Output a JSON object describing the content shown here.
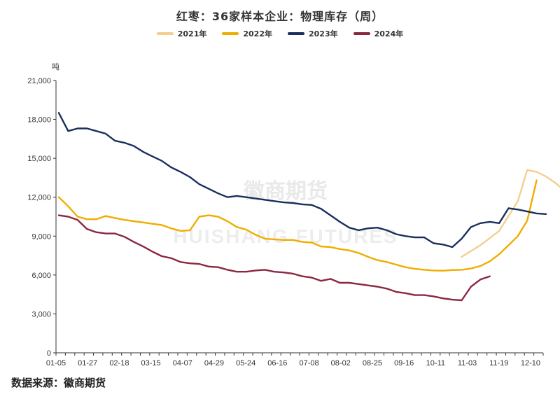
{
  "chart_data": {
    "type": "line",
    "title": "红枣：36家样本企业：物理库存（周）",
    "ylabel": "吨",
    "ylim": [
      0,
      21000
    ],
    "yticks": [
      "0",
      "3,000",
      "6,000",
      "9,000",
      "12,000",
      "15,000",
      "18,000",
      "21,000"
    ],
    "xticks": [
      "01-05",
      "01-27",
      "02-18",
      "03-15",
      "04-07",
      "04-29",
      "05-24",
      "06-16",
      "07-08",
      "08-02",
      "08-25",
      "09-16",
      "10-11",
      "11-03",
      "11-19",
      "12-10"
    ],
    "x_count": 52,
    "grid": false,
    "legend": "top",
    "watermark": [
      "徽商期货",
      "HUISHANG FUTURES"
    ],
    "series": [
      {
        "name": "2021年",
        "color": "#f3cf8f",
        "points": [
          [
            43,
            7400
          ],
          [
            45,
            8300
          ],
          [
            47,
            9400
          ],
          [
            49,
            11700
          ],
          [
            50,
            14100
          ],
          [
            51,
            13950
          ],
          [
            52,
            13600
          ],
          [
            53,
            13100
          ],
          [
            54,
            12500
          ]
        ]
      },
      {
        "name": "2022年",
        "color": "#f0ad00",
        "points": [
          [
            0,
            12000
          ],
          [
            1,
            11300
          ],
          [
            2,
            10500
          ],
          [
            3,
            10300
          ],
          [
            4,
            10300
          ],
          [
            5,
            10550
          ],
          [
            6,
            10400
          ],
          [
            7,
            10250
          ],
          [
            8,
            10150
          ],
          [
            9,
            10050
          ],
          [
            10,
            9950
          ],
          [
            11,
            9850
          ],
          [
            12,
            9600
          ],
          [
            13,
            9400
          ],
          [
            14,
            9450
          ],
          [
            15,
            10500
          ],
          [
            16,
            10600
          ],
          [
            17,
            10500
          ],
          [
            18,
            10150
          ],
          [
            19,
            9700
          ],
          [
            20,
            9500
          ],
          [
            21,
            9100
          ],
          [
            22,
            8800
          ],
          [
            23,
            8750
          ],
          [
            24,
            8700
          ],
          [
            25,
            8700
          ],
          [
            26,
            8550
          ],
          [
            27,
            8500
          ],
          [
            28,
            8200
          ],
          [
            29,
            8150
          ],
          [
            30,
            8000
          ],
          [
            31,
            7900
          ],
          [
            32,
            7700
          ],
          [
            33,
            7400
          ],
          [
            34,
            7150
          ],
          [
            35,
            7000
          ],
          [
            36,
            6800
          ],
          [
            37,
            6600
          ],
          [
            38,
            6480
          ],
          [
            39,
            6400
          ],
          [
            40,
            6350
          ],
          [
            41,
            6330
          ],
          [
            42,
            6380
          ],
          [
            43,
            6400
          ],
          [
            44,
            6500
          ],
          [
            45,
            6700
          ],
          [
            46,
            7050
          ],
          [
            47,
            7600
          ],
          [
            48,
            8300
          ],
          [
            49,
            9000
          ],
          [
            50,
            10200
          ],
          [
            51,
            13300
          ]
        ]
      },
      {
        "name": "2023年",
        "color": "#1a2f5e",
        "points": [
          [
            0,
            18500
          ],
          [
            1,
            17100
          ],
          [
            2,
            17300
          ],
          [
            3,
            17300
          ],
          [
            4,
            17100
          ],
          [
            5,
            16900
          ],
          [
            6,
            16350
          ],
          [
            7,
            16200
          ],
          [
            8,
            15950
          ],
          [
            9,
            15500
          ],
          [
            10,
            15150
          ],
          [
            11,
            14800
          ],
          [
            12,
            14300
          ],
          [
            13,
            13950
          ],
          [
            14,
            13550
          ],
          [
            15,
            13000
          ],
          [
            16,
            12650
          ],
          [
            17,
            12300
          ],
          [
            18,
            12000
          ],
          [
            19,
            12100
          ],
          [
            20,
            12000
          ],
          [
            21,
            11900
          ],
          [
            22,
            11800
          ],
          [
            23,
            11700
          ],
          [
            24,
            11600
          ],
          [
            25,
            11550
          ],
          [
            26,
            11450
          ],
          [
            27,
            11400
          ],
          [
            28,
            11100
          ],
          [
            29,
            10600
          ],
          [
            30,
            10100
          ],
          [
            31,
            9650
          ],
          [
            32,
            9450
          ],
          [
            33,
            9600
          ],
          [
            34,
            9650
          ],
          [
            35,
            9450
          ],
          [
            36,
            9150
          ],
          [
            37,
            9000
          ],
          [
            38,
            8900
          ],
          [
            39,
            8900
          ],
          [
            40,
            8450
          ],
          [
            41,
            8350
          ],
          [
            42,
            8150
          ],
          [
            43,
            8800
          ],
          [
            44,
            9700
          ],
          [
            45,
            10000
          ],
          [
            46,
            10100
          ],
          [
            47,
            10000
          ],
          [
            48,
            11150
          ],
          [
            49,
            11050
          ],
          [
            50,
            10900
          ],
          [
            51,
            10750
          ],
          [
            52,
            10700
          ]
        ]
      },
      {
        "name": "2024年",
        "color": "#8b2740",
        "points": [
          [
            0,
            10600
          ],
          [
            1,
            10500
          ],
          [
            2,
            10250
          ],
          [
            3,
            9550
          ],
          [
            4,
            9300
          ],
          [
            5,
            9200
          ],
          [
            6,
            9200
          ],
          [
            7,
            8950
          ],
          [
            8,
            8550
          ],
          [
            9,
            8200
          ],
          [
            10,
            7800
          ],
          [
            11,
            7450
          ],
          [
            12,
            7300
          ],
          [
            13,
            7000
          ],
          [
            14,
            6900
          ],
          [
            15,
            6850
          ],
          [
            16,
            6650
          ],
          [
            17,
            6600
          ],
          [
            18,
            6400
          ],
          [
            19,
            6250
          ],
          [
            20,
            6250
          ],
          [
            21,
            6350
          ],
          [
            22,
            6400
          ],
          [
            23,
            6250
          ],
          [
            24,
            6200
          ],
          [
            25,
            6100
          ],
          [
            26,
            5900
          ],
          [
            27,
            5800
          ],
          [
            28,
            5550
          ],
          [
            29,
            5700
          ],
          [
            30,
            5400
          ],
          [
            31,
            5400
          ],
          [
            32,
            5300
          ],
          [
            33,
            5200
          ],
          [
            34,
            5100
          ],
          [
            35,
            4950
          ],
          [
            36,
            4700
          ],
          [
            37,
            4600
          ],
          [
            38,
            4450
          ],
          [
            39,
            4450
          ],
          [
            40,
            4350
          ],
          [
            41,
            4200
          ],
          [
            42,
            4100
          ],
          [
            43,
            4050
          ],
          [
            44,
            5100
          ],
          [
            45,
            5650
          ],
          [
            46,
            5900
          ]
        ]
      }
    ]
  },
  "source": "数据来源：徽商期货"
}
